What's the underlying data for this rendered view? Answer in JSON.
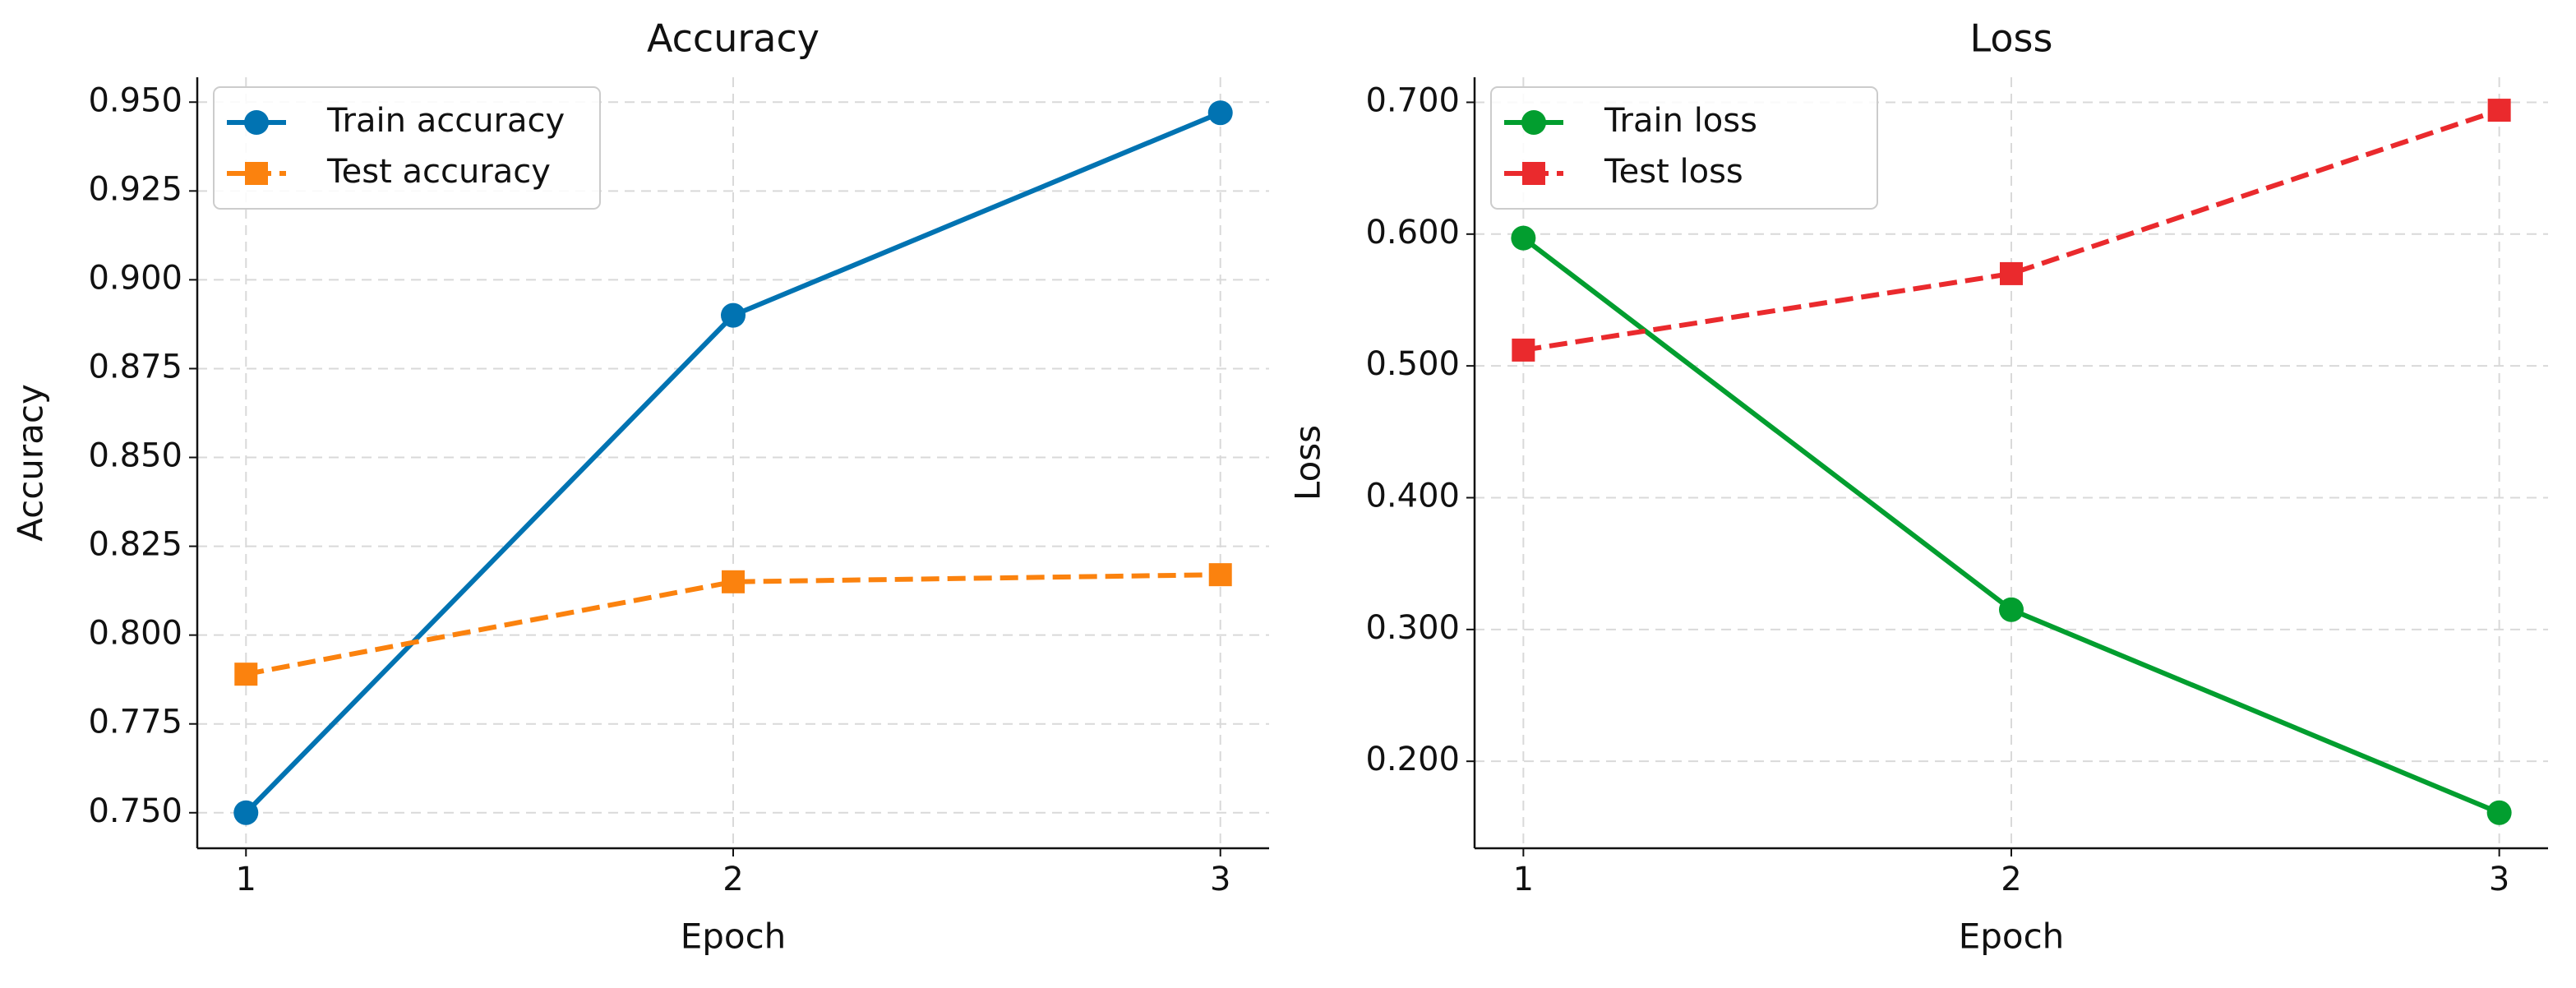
{
  "chart_data": [
    {
      "type": "line",
      "title": "Accuracy",
      "xlabel": "Epoch",
      "ylabel": "Accuracy",
      "x": [
        1,
        2,
        3
      ],
      "xticks": [
        1,
        2,
        3
      ],
      "xlim": [
        0.9,
        3.1
      ],
      "ylim": [
        0.74,
        0.957
      ],
      "yticks": [
        {
          "value": 0.75,
          "label": "0.750"
        },
        {
          "value": 0.775,
          "label": "0.775"
        },
        {
          "value": 0.8,
          "label": "0.800"
        },
        {
          "value": 0.825,
          "label": "0.825"
        },
        {
          "value": 0.85,
          "label": "0.850"
        },
        {
          "value": 0.875,
          "label": "0.875"
        },
        {
          "value": 0.9,
          "label": "0.900"
        },
        {
          "value": 0.925,
          "label": "0.925"
        },
        {
          "value": 0.95,
          "label": "0.950"
        }
      ],
      "grid": true,
      "legend": "upper left",
      "series": [
        {
          "name": "Train accuracy",
          "color": "#0173b2",
          "linestyle": "solid",
          "marker": "o",
          "values": [
            0.75,
            0.89,
            0.947
          ]
        },
        {
          "name": "Test accuracy",
          "color": "#fb820e",
          "linestyle": "dashed",
          "marker": "s",
          "values": [
            0.789,
            0.815,
            0.817
          ]
        }
      ]
    },
    {
      "type": "line",
      "title": "Loss",
      "xlabel": "Epoch",
      "ylabel": "Loss",
      "x": [
        1,
        2,
        3
      ],
      "xticks": [
        1,
        2,
        3
      ],
      "xlim": [
        0.9,
        3.1
      ],
      "ylim": [
        0.134,
        0.719
      ],
      "yticks": [
        {
          "value": 0.2,
          "label": "0.200"
        },
        {
          "value": 0.3,
          "label": "0.300"
        },
        {
          "value": 0.4,
          "label": "0.400"
        },
        {
          "value": 0.5,
          "label": "0.500"
        },
        {
          "value": 0.6,
          "label": "0.600"
        },
        {
          "value": 0.7,
          "label": "0.700"
        }
      ],
      "grid": true,
      "legend": "upper left",
      "series": [
        {
          "name": "Train loss",
          "color": "#029e2f",
          "linestyle": "solid",
          "marker": "o",
          "values": [
            0.597,
            0.315,
            0.161
          ]
        },
        {
          "name": "Test loss",
          "color": "#ea2a2d",
          "linestyle": "dashed",
          "marker": "s",
          "values": [
            0.512,
            0.57,
            0.694
          ]
        }
      ]
    }
  ]
}
